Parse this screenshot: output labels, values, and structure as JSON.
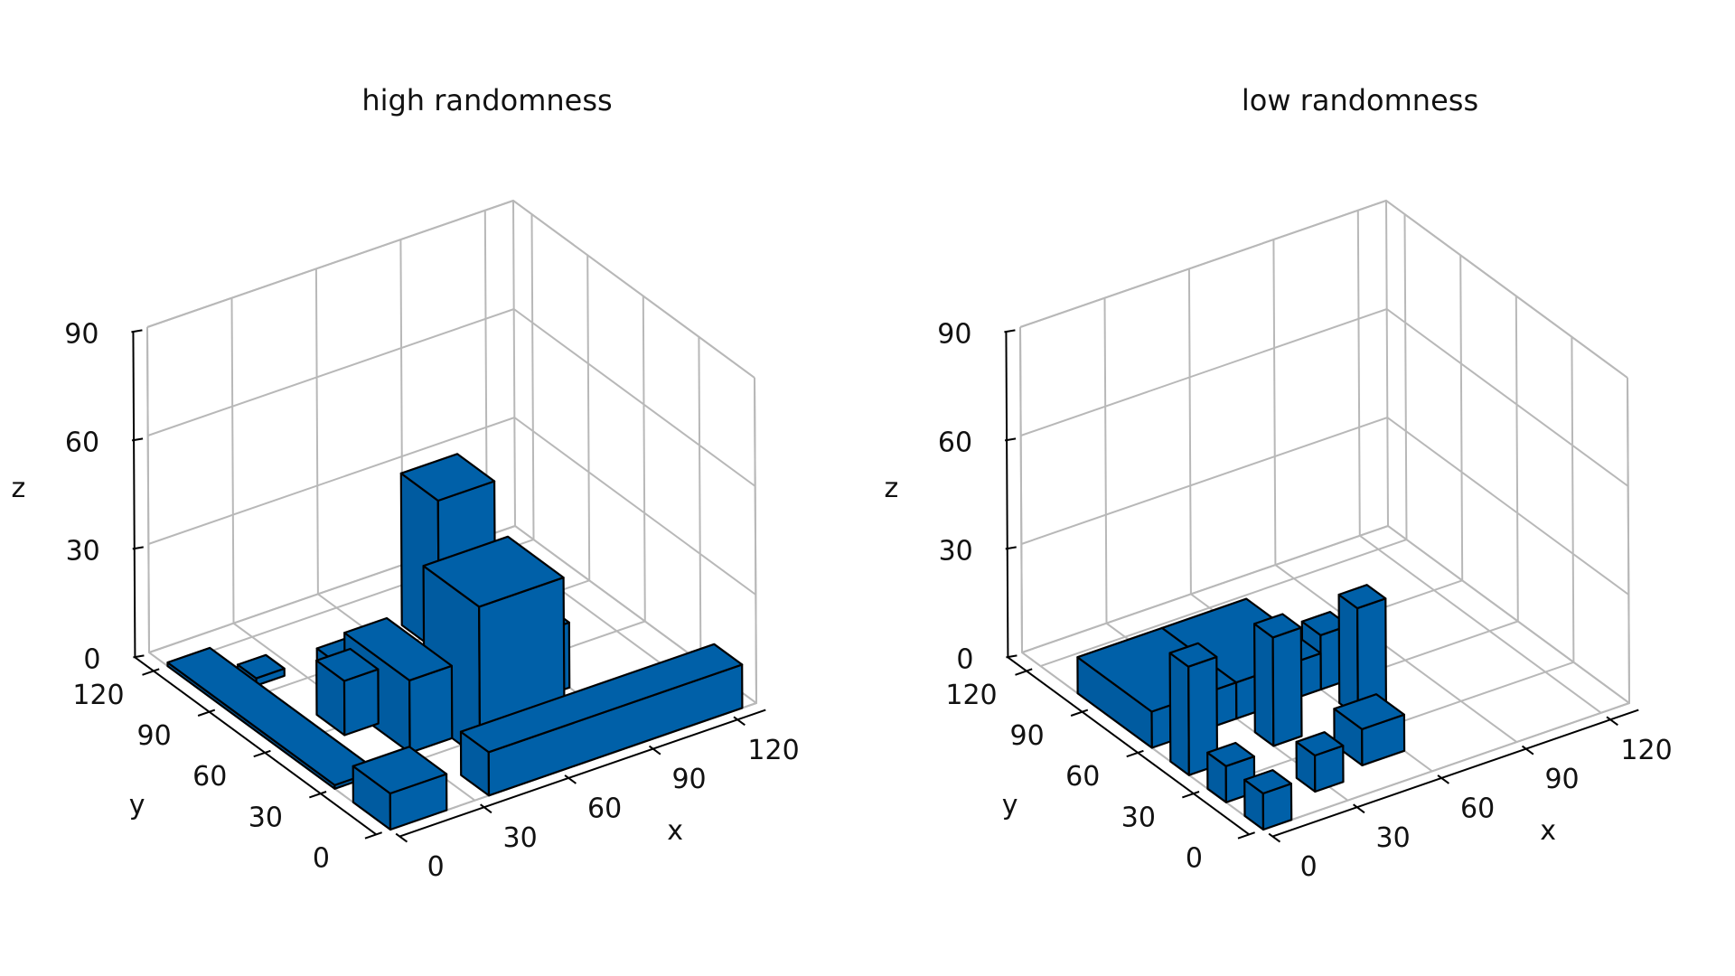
{
  "chart_data": [
    {
      "type": "bar3d",
      "title": "high randomness",
      "xlabel": "x",
      "ylabel": "y",
      "zlabel": "z",
      "xlim": [
        0,
        130
      ],
      "ylim": [
        0,
        130
      ],
      "zlim": [
        0,
        90
      ],
      "xticks": [
        "0",
        "30",
        "60",
        "90",
        "120"
      ],
      "yticks": [
        "0",
        "30",
        "60",
        "90",
        "120"
      ],
      "zticks": [
        "0",
        "30",
        "60",
        "90"
      ],
      "color": "#0060a8",
      "boxes": [
        {
          "x": 0,
          "y": 0,
          "z": 0,
          "dx": 20,
          "dy": 20,
          "dz": 10
        },
        {
          "x": 35,
          "y": 0,
          "z": 0,
          "dx": 90,
          "dy": 15,
          "dz": 12
        },
        {
          "x": 45,
          "y": 20,
          "z": 0,
          "dx": 30,
          "dy": 30,
          "dz": 42
        },
        {
          "x": 70,
          "y": 80,
          "z": 0,
          "dx": 20,
          "dy": 20,
          "dz": 42
        },
        {
          "x": 80,
          "y": 40,
          "z": 0,
          "dx": 10,
          "dy": 10,
          "dz": 18
        },
        {
          "x": 20,
          "y": 55,
          "z": 0,
          "dx": 12,
          "dy": 15,
          "dz": 15
        },
        {
          "x": 30,
          "y": 65,
          "z": 0,
          "dx": 20,
          "dy": 20,
          "dz": 10
        },
        {
          "x": 15,
          "y": 95,
          "z": 0,
          "dx": 10,
          "dy": 10,
          "dz": 2
        },
        {
          "x": 30,
          "y": 35,
          "z": 0,
          "dx": 15,
          "dy": 35,
          "dz": 20
        },
        {
          "x": 0,
          "y": 30,
          "z": 0,
          "dx": 15,
          "dy": 90,
          "dz": 1
        }
      ]
    },
    {
      "type": "bar3d",
      "title": "low randomness",
      "xlabel": "x",
      "ylabel": "y",
      "zlabel": "z",
      "xlim": [
        0,
        130
      ],
      "ylim": [
        0,
        130
      ],
      "zlim": [
        0,
        90
      ],
      "xticks": [
        "0",
        "30",
        "60",
        "90",
        "120"
      ],
      "yticks": [
        "0",
        "30",
        "60",
        "90",
        "120"
      ],
      "zticks": [
        "0",
        "30",
        "60",
        "90"
      ],
      "color": "#0060a8",
      "boxes": [
        {
          "x": 0,
          "y": 0,
          "z": 0,
          "dx": 10,
          "dy": 10,
          "dz": 10
        },
        {
          "x": 0,
          "y": 20,
          "z": 0,
          "dx": 10,
          "dy": 10,
          "dz": 10
        },
        {
          "x": 25,
          "y": 10,
          "z": 0,
          "dx": 10,
          "dy": 10,
          "dz": 10
        },
        {
          "x": 45,
          "y": 15,
          "z": 0,
          "dx": 15,
          "dy": 15,
          "dz": 10
        },
        {
          "x": 0,
          "y": 40,
          "z": 0,
          "dx": 10,
          "dy": 10,
          "dz": 30
        },
        {
          "x": 30,
          "y": 40,
          "z": 0,
          "dx": 10,
          "dy": 10,
          "dz": 30
        },
        {
          "x": 60,
          "y": 40,
          "z": 0,
          "dx": 10,
          "dy": 10,
          "dz": 30
        },
        {
          "x": 60,
          "y": 60,
          "z": 0,
          "dx": 10,
          "dy": 10,
          "dz": 15
        },
        {
          "x": 0,
          "y": 60,
          "z": 0,
          "dx": 30,
          "dy": 40,
          "dz": 10
        },
        {
          "x": 30,
          "y": 60,
          "z": 0,
          "dx": 30,
          "dy": 40,
          "dz": 10
        }
      ]
    }
  ]
}
